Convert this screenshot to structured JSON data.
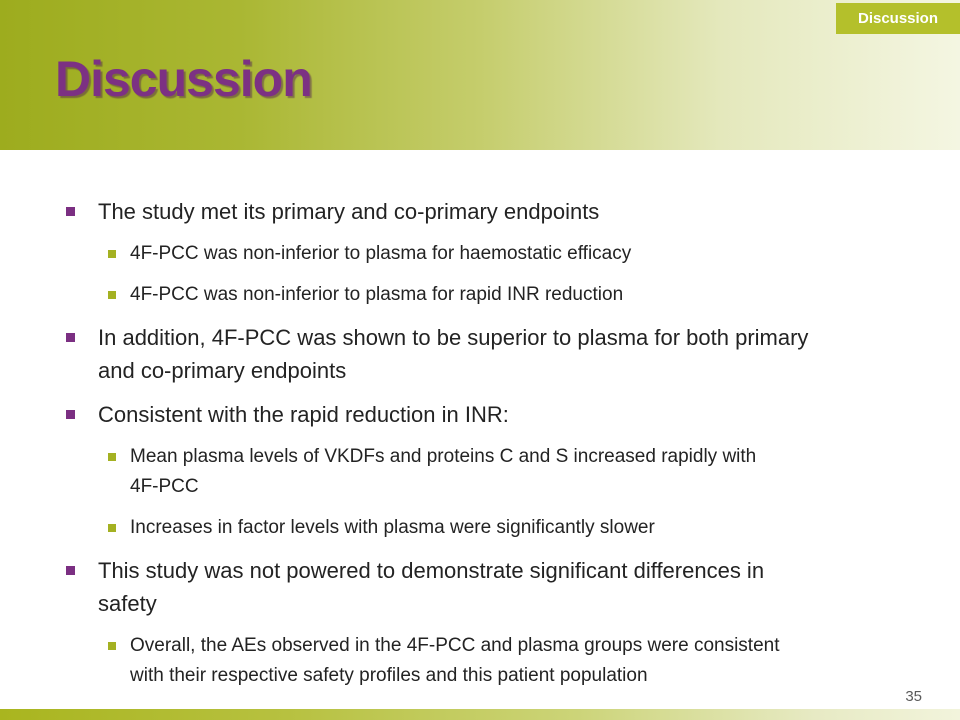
{
  "slide": {
    "section_tab": "Discussion",
    "title": "Discussion",
    "page_number": "35",
    "colors": {
      "header_olive": "#9dac1e",
      "header_light": "#f4f6e2",
      "tab_background": "#b4c02b",
      "title_purple": "#7c3183",
      "bullet_level1": "#7b2f82",
      "bullet_level2": "#a4b122",
      "body_text": "#232323",
      "page_number": "#5a5a5a"
    },
    "bullets": [
      {
        "level": 1,
        "lines": [
          "The study met its primary and co-primary endpoints"
        ]
      },
      {
        "level": 2,
        "lines": [
          "4F-PCC was non-inferior to plasma for haemostatic efficacy"
        ]
      },
      {
        "level": 2,
        "lines": [
          "4F-PCC was non-inferior to plasma for rapid INR reduction"
        ]
      },
      {
        "level": 1,
        "lines": [
          "In addition, 4F-PCC was shown to be superior to plasma for both primary",
          "and co-primary endpoints"
        ]
      },
      {
        "level": 1,
        "lines": [
          "Consistent with the rapid reduction in INR:"
        ]
      },
      {
        "level": 2,
        "lines": [
          "Mean plasma levels of VKDFs and proteins C and S increased rapidly with",
          "4F-PCC"
        ]
      },
      {
        "level": 2,
        "lines": [
          "Increases in factor levels with plasma were significantly slower"
        ]
      },
      {
        "level": 1,
        "lines": [
          "This study was not powered to demonstrate significant differences in",
          "safety"
        ]
      },
      {
        "level": 2,
        "lines": [
          "Overall, the AEs observed in the 4F-PCC and plasma groups were consistent",
          "with their respective safety profiles and this patient population"
        ]
      }
    ]
  }
}
